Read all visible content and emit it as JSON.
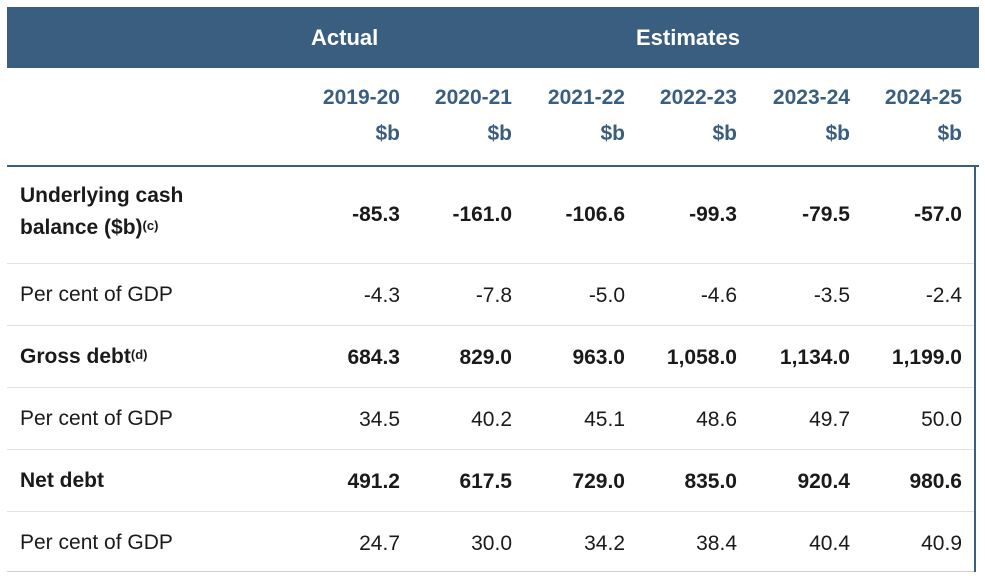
{
  "header": {
    "actual_label": "Actual",
    "estimates_label": "Estimates",
    "years": [
      "2019-20",
      "2020-21",
      "2021-22",
      "2022-23",
      "2023-24",
      "2024-25"
    ],
    "unit": "$b"
  },
  "rows": [
    {
      "label_line1": "Underlying cash",
      "label_line2": "balance ($b)",
      "note": "(c)",
      "bold": true,
      "values": [
        "-85.3",
        "-161.0",
        "-106.6",
        "-99.3",
        "-79.5",
        "-57.0"
      ]
    },
    {
      "label": "Per cent of GDP",
      "bold": false,
      "values": [
        "-4.3",
        "-7.8",
        "-5.0",
        "-4.6",
        "-3.5",
        "-2.4"
      ]
    },
    {
      "label": "Gross debt",
      "note": "(d)",
      "bold": true,
      "values": [
        "684.3",
        "829.0",
        "963.0",
        "1,058.0",
        "1,134.0",
        "1,199.0"
      ]
    },
    {
      "label": "Per cent of GDP",
      "bold": false,
      "values": [
        "34.5",
        "40.2",
        "45.1",
        "48.6",
        "49.7",
        "50.0"
      ]
    },
    {
      "label": "Net debt",
      "bold": true,
      "values": [
        "491.2",
        "617.5",
        "729.0",
        "835.0",
        "920.4",
        "980.6"
      ]
    },
    {
      "label": "Per cent of GDP",
      "bold": false,
      "values": [
        "24.7",
        "30.0",
        "34.2",
        "38.4",
        "40.4",
        "40.9"
      ]
    }
  ],
  "colors": {
    "header_bg": "#3a5e80",
    "header_text": "#ffffff",
    "accent_text": "#3a5e80"
  }
}
